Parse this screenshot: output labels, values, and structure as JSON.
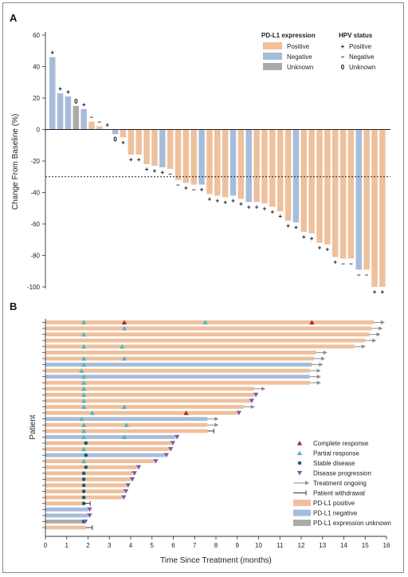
{
  "colors": {
    "positive": "#EEC09C",
    "negative": "#A7BCD9",
    "unknown": "#ABABAB",
    "complete": "#A52A2A",
    "partial": "#57B6B2",
    "stable": "#1C5E78",
    "progression": "#7D5AA4",
    "ongoing": "#8C8C8C"
  },
  "chart_data": [
    {
      "panel": "A",
      "type": "bar",
      "ylabel": "Change From Baseline (%)",
      "ylim": [
        -100,
        60
      ],
      "yticks": [
        60,
        40,
        20,
        0,
        -20,
        -40,
        -60,
        -80,
        -100
      ],
      "reference_line": -30,
      "legend": {
        "expr_title": "PD-L1 expression",
        "expr_items": [
          {
            "key": "positive",
            "label": "Positive"
          },
          {
            "key": "negative",
            "label": "Negative"
          },
          {
            "key": "unknown",
            "label": "Unknown"
          }
        ],
        "hpv_title": "HPV status",
        "hpv_items": [
          {
            "symbol": "+",
            "label": "Positive"
          },
          {
            "symbol": "–",
            "label": "Negative"
          },
          {
            "symbol": "0",
            "label": "Unknown"
          }
        ]
      },
      "bars": [
        {
          "v": 46,
          "e": "negative",
          "h": "+"
        },
        {
          "v": 23,
          "e": "negative",
          "h": "+"
        },
        {
          "v": 21,
          "e": "negative",
          "h": "+"
        },
        {
          "v": 15,
          "e": "unknown",
          "h": "0"
        },
        {
          "v": 13,
          "e": "negative",
          "h": "+"
        },
        {
          "v": 5,
          "e": "positive",
          "h": "–"
        },
        {
          "v": 2,
          "e": "positive",
          "h": "–"
        },
        {
          "v": 0,
          "e": "positive",
          "h": "+"
        },
        {
          "v": -3,
          "e": "negative",
          "h": "0"
        },
        {
          "v": -5,
          "e": "positive",
          "h": "+"
        },
        {
          "v": -16,
          "e": "positive",
          "h": "+"
        },
        {
          "v": -16,
          "e": "positive",
          "h": "+"
        },
        {
          "v": -22,
          "e": "positive",
          "h": "+"
        },
        {
          "v": -23,
          "e": "positive",
          "h": "+"
        },
        {
          "v": -24,
          "e": "negative",
          "h": "+"
        },
        {
          "v": -25,
          "e": "positive",
          "h": "–"
        },
        {
          "v": -32,
          "e": "positive",
          "h": "–"
        },
        {
          "v": -34,
          "e": "positive",
          "h": "+"
        },
        {
          "v": -35,
          "e": "positive",
          "h": "–"
        },
        {
          "v": -35,
          "e": "negative",
          "h": "+"
        },
        {
          "v": -41,
          "e": "positive",
          "h": "+"
        },
        {
          "v": -42,
          "e": "positive",
          "h": "+"
        },
        {
          "v": -43,
          "e": "positive",
          "h": "+"
        },
        {
          "v": -42,
          "e": "negative",
          "h": "+"
        },
        {
          "v": -44,
          "e": "positive",
          "h": "+"
        },
        {
          "v": -46,
          "e": "negative",
          "h": "+"
        },
        {
          "v": -46,
          "e": "positive",
          "h": "+"
        },
        {
          "v": -47,
          "e": "positive",
          "h": "+"
        },
        {
          "v": -49,
          "e": "positive",
          "h": "+"
        },
        {
          "v": -52,
          "e": "positive",
          "h": "+"
        },
        {
          "v": -58,
          "e": "positive",
          "h": "+"
        },
        {
          "v": -59,
          "e": "negative",
          "h": "+"
        },
        {
          "v": -65,
          "e": "positive",
          "h": "+"
        },
        {
          "v": -66,
          "e": "positive",
          "h": "+"
        },
        {
          "v": -72,
          "e": "positive",
          "h": "+"
        },
        {
          "v": -73,
          "e": "positive",
          "h": "+"
        },
        {
          "v": -81,
          "e": "positive",
          "h": "+"
        },
        {
          "v": -82,
          "e": "positive",
          "h": "–"
        },
        {
          "v": -82,
          "e": "positive",
          "h": "–"
        },
        {
          "v": -89,
          "e": "negative",
          "h": "–"
        },
        {
          "v": -89,
          "e": "positive",
          "h": "–"
        },
        {
          "v": -100,
          "e": "positive",
          "h": "+"
        },
        {
          "v": -100,
          "e": "positive",
          "h": "+"
        }
      ]
    },
    {
      "panel": "B",
      "type": "bar",
      "orientation": "horizontal",
      "xlabel": "Time Since Treatment (months)",
      "ylabel": "Patient",
      "xlim": [
        0,
        16
      ],
      "xticks": [
        0,
        1,
        2,
        3,
        4,
        5,
        6,
        7,
        8,
        9,
        10,
        11,
        12,
        13,
        14,
        15,
        16
      ],
      "legend": [
        {
          "key": "complete",
          "label": "Complete response"
        },
        {
          "key": "partial",
          "label": "Partial response"
        },
        {
          "key": "stable",
          "label": "Stable disease"
        },
        {
          "key": "progression",
          "label": "Disease progression"
        },
        {
          "key": "ongoing",
          "label": "Treatment ongoing"
        },
        {
          "key": "withdrawal",
          "label": "Patient withdrawal"
        },
        {
          "key": "pos",
          "label": "PD-L1 positive"
        },
        {
          "key": "neg",
          "label": "PD-L1 negative"
        },
        {
          "key": "unk",
          "label": "PD-L1 expression unknown"
        }
      ],
      "patients": [
        {
          "d": 15.4,
          "e": "positive",
          "end": "ongoing",
          "ev": [
            {
              "t": 1.8,
              "k": "partial"
            },
            {
              "t": 3.7,
              "k": "complete"
            },
            {
              "t": 7.5,
              "k": "partial"
            },
            {
              "t": 12.5,
              "k": "complete"
            }
          ]
        },
        {
          "d": 15.3,
          "e": "positive",
          "end": "ongoing",
          "ev": [
            {
              "t": 3.7,
              "k": "partial"
            }
          ]
        },
        {
          "d": 15.2,
          "e": "positive",
          "end": "ongoing",
          "ev": [
            {
              "t": 1.8,
              "k": "partial"
            }
          ]
        },
        {
          "d": 15.0,
          "e": "positive",
          "end": "ongoing",
          "ev": []
        },
        {
          "d": 14.5,
          "e": "positive",
          "end": "ongoing",
          "ev": [
            {
              "t": 1.8,
              "k": "partial"
            },
            {
              "t": 3.6,
              "k": "partial"
            }
          ]
        },
        {
          "d": 12.7,
          "e": "positive",
          "end": "ongoing",
          "ev": []
        },
        {
          "d": 12.6,
          "e": "positive",
          "end": "ongoing",
          "ev": [
            {
              "t": 1.8,
              "k": "partial"
            },
            {
              "t": 3.7,
              "k": "partial"
            }
          ]
        },
        {
          "d": 12.5,
          "e": "negative",
          "end": "ongoing",
          "ev": [
            {
              "t": 1.8,
              "k": "partial"
            }
          ]
        },
        {
          "d": 12.4,
          "e": "positive",
          "end": "ongoing",
          "ev": [
            {
              "t": 1.7,
              "k": "partial"
            }
          ]
        },
        {
          "d": 12.4,
          "e": "negative",
          "end": "ongoing",
          "ev": [
            {
              "t": 1.8,
              "k": "partial"
            }
          ]
        },
        {
          "d": 12.4,
          "e": "positive",
          "end": "ongoing",
          "ev": [
            {
              "t": 1.8,
              "k": "partial"
            }
          ]
        },
        {
          "d": 9.8,
          "e": "positive",
          "end": "ongoing",
          "ev": [
            {
              "t": 1.8,
              "k": "partial"
            }
          ]
        },
        {
          "d": 9.8,
          "e": "positive",
          "end": "progression",
          "ev": [
            {
              "t": 1.8,
              "k": "partial"
            }
          ]
        },
        {
          "d": 9.6,
          "e": "positive",
          "end": "progression",
          "ev": [
            {
              "t": 1.8,
              "k": "partial"
            }
          ]
        },
        {
          "d": 9.3,
          "e": "positive",
          "end": "ongoing",
          "ev": [
            {
              "t": 1.8,
              "k": "partial"
            },
            {
              "t": 3.7,
              "k": "partial"
            }
          ]
        },
        {
          "d": 9.0,
          "e": "positive",
          "end": "progression",
          "ev": [
            {
              "t": 2.2,
              "k": "partial"
            },
            {
              "t": 6.6,
              "k": "complete"
            }
          ]
        },
        {
          "d": 7.6,
          "e": "negative",
          "end": "ongoing",
          "ev": [
            {
              "t": 1.7,
              "k": "partial"
            }
          ]
        },
        {
          "d": 7.6,
          "e": "positive",
          "end": "ongoing",
          "ev": [
            {
              "t": 1.8,
              "k": "partial"
            },
            {
              "t": 3.8,
              "k": "partial"
            }
          ]
        },
        {
          "d": 7.6,
          "e": "positive",
          "end": "withdrawal",
          "ev": [
            {
              "t": 1.8,
              "k": "partial"
            }
          ]
        },
        {
          "d": 6.1,
          "e": "negative",
          "end": "progression",
          "ev": [
            {
              "t": 1.8,
              "k": "partial"
            },
            {
              "t": 3.7,
              "k": "partial"
            }
          ]
        },
        {
          "d": 5.9,
          "e": "positive",
          "end": "progression",
          "ev": [
            {
              "t": 1.9,
              "k": "stable"
            }
          ]
        },
        {
          "d": 5.8,
          "e": "positive",
          "end": "progression",
          "ev": [
            {
              "t": 1.8,
              "k": "partial"
            }
          ]
        },
        {
          "d": 5.6,
          "e": "negative",
          "end": "progression",
          "ev": [
            {
              "t": 1.9,
              "k": "stable"
            }
          ]
        },
        {
          "d": 5.1,
          "e": "positive",
          "end": "progression",
          "ev": [
            {
              "t": 1.8,
              "k": "partial"
            }
          ]
        },
        {
          "d": 4.3,
          "e": "positive",
          "end": "progression",
          "ev": [
            {
              "t": 1.9,
              "k": "stable"
            }
          ]
        },
        {
          "d": 4.1,
          "e": "positive",
          "end": "progression",
          "ev": [
            {
              "t": 1.8,
              "k": "stable"
            }
          ]
        },
        {
          "d": 4.0,
          "e": "positive",
          "end": "progression",
          "ev": [
            {
              "t": 1.8,
              "k": "stable"
            }
          ]
        },
        {
          "d": 3.8,
          "e": "positive",
          "end": "progression",
          "ev": [
            {
              "t": 1.8,
              "k": "stable"
            }
          ]
        },
        {
          "d": 3.7,
          "e": "positive",
          "end": "progression",
          "ev": [
            {
              "t": 1.8,
              "k": "stable"
            }
          ]
        },
        {
          "d": 3.6,
          "e": "positive",
          "end": "progression",
          "ev": [
            {
              "t": 1.8,
              "k": "stable"
            }
          ]
        },
        {
          "d": 1.8,
          "e": "positive",
          "end": "withdrawal",
          "ev": [
            {
              "t": 1.8,
              "k": "stable"
            }
          ]
        },
        {
          "d": 2.0,
          "e": "negative",
          "end": "progression",
          "ev": []
        },
        {
          "d": 2.0,
          "e": "negative",
          "end": "progression",
          "ev": []
        },
        {
          "d": 1.8,
          "e": "unknown",
          "end": "progression",
          "ev": [
            {
              "t": 1.8,
              "k": "stable"
            }
          ]
        },
        {
          "d": 1.9,
          "e": "positive",
          "end": "withdrawal",
          "ev": []
        }
      ]
    }
  ]
}
